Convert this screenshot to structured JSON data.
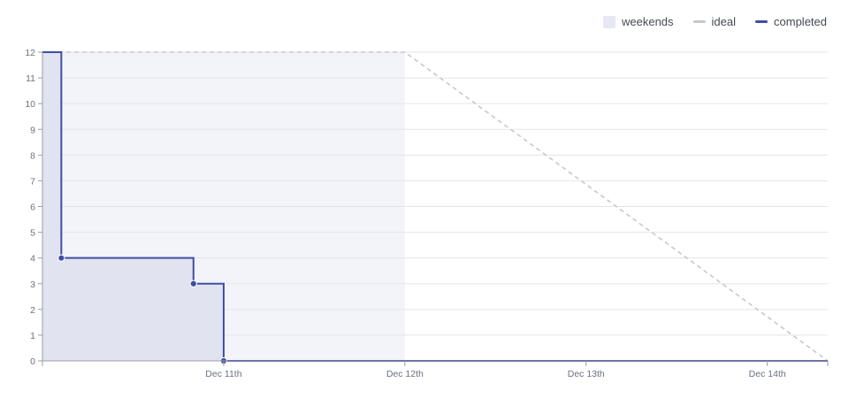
{
  "legend": {
    "weekends_label": "weekends",
    "ideal_label": "ideal",
    "completed_label": "completed"
  },
  "colors": {
    "weekend_fill": "#f3f4fa",
    "weekend_swatch": "#e6e8f5",
    "ideal": "#c8c8cc",
    "completed": "#3f4ea1",
    "completed_area": "#e1e3f1",
    "grid": "#e4e5ea",
    "axis": "#9a9ca6"
  },
  "chart_data": {
    "type": "line",
    "x_unit": "date",
    "xlim": [
      "Dec 10, 00:00",
      "Dec 14, 08:00"
    ],
    "ylim": [
      0,
      12
    ],
    "y_ticks": [
      0,
      1,
      2,
      3,
      4,
      5,
      6,
      7,
      8,
      9,
      10,
      11,
      12
    ],
    "x_ticks": [
      "Dec 11th",
      "Dec 12th",
      "Dec 13th",
      "Dec 14th"
    ],
    "weekend_range": [
      "Dec 10, 00:00",
      "Dec 12, 00:00"
    ],
    "series": [
      {
        "name": "ideal",
        "style": "dashed",
        "points": [
          [
            "Dec 10, 00:00",
            12
          ],
          [
            "Dec 12, 00:00",
            12
          ],
          [
            "Dec 14, 08:00",
            0
          ]
        ]
      },
      {
        "name": "completed",
        "style": "step",
        "points": [
          [
            "Dec 10, 00:00",
            12
          ],
          [
            "Dec 10, 02:30",
            12
          ],
          [
            "Dec 10, 02:30",
            4
          ],
          [
            "Dec 10, 20:00",
            4
          ],
          [
            "Dec 10, 20:00",
            3
          ],
          [
            "Dec 11, 00:00",
            3
          ],
          [
            "Dec 11, 00:00",
            0
          ],
          [
            "Dec 14, 08:00",
            0
          ]
        ],
        "markers": [
          [
            "Dec 10, 02:30",
            4
          ],
          [
            "Dec 10, 20:00",
            3
          ],
          [
            "Dec 11, 00:00",
            0
          ]
        ]
      }
    ]
  }
}
